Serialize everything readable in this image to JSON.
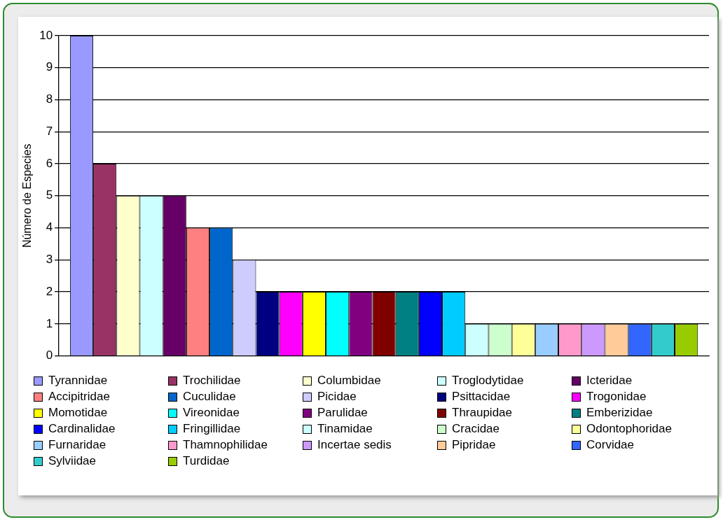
{
  "chart_data": {
    "type": "bar",
    "ylabel": "Número de Especies",
    "categories": [
      null
    ],
    "ylim": [
      0,
      10
    ],
    "yticks": [
      0,
      1,
      2,
      3,
      4,
      5,
      6,
      7,
      8,
      9,
      10
    ],
    "grid": "y",
    "legend": "bottom",
    "series": [
      {
        "name": "Tyrannidae",
        "color": "#9999ff",
        "values": [
          10
        ]
      },
      {
        "name": "Trochilidae",
        "color": "#993366",
        "values": [
          6
        ]
      },
      {
        "name": "Columbidae",
        "color": "#ffffcc",
        "values": [
          5
        ]
      },
      {
        "name": "Troglodytidae",
        "color": "#ccffff",
        "values": [
          5
        ]
      },
      {
        "name": "Icteridae",
        "color": "#660066",
        "values": [
          5
        ]
      },
      {
        "name": "Accipitridae",
        "color": "#ff8080",
        "values": [
          4
        ]
      },
      {
        "name": "Cuculidae",
        "color": "#0066cc",
        "values": [
          4
        ]
      },
      {
        "name": "Picidae",
        "color": "#ccccff",
        "values": [
          3
        ]
      },
      {
        "name": "Psittacidae",
        "color": "#000080",
        "values": [
          2
        ]
      },
      {
        "name": "Trogonidae",
        "color": "#ff00ff",
        "values": [
          2
        ]
      },
      {
        "name": "Momotidae",
        "color": "#ffff00",
        "values": [
          2
        ]
      },
      {
        "name": "Vireonidae",
        "color": "#00ffff",
        "values": [
          2
        ]
      },
      {
        "name": "Parulidae",
        "color": "#800080",
        "values": [
          2
        ]
      },
      {
        "name": "Thraupidae",
        "color": "#800000",
        "values": [
          2
        ]
      },
      {
        "name": "Emberizidae",
        "color": "#008080",
        "values": [
          2
        ]
      },
      {
        "name": "Cardinalidae",
        "color": "#0000ff",
        "values": [
          2
        ]
      },
      {
        "name": "Fringillidae",
        "color": "#00ccff",
        "values": [
          2
        ]
      },
      {
        "name": "Tinamidae",
        "color": "#ccffff",
        "values": [
          1
        ]
      },
      {
        "name": "Cracidae",
        "color": "#ccffcc",
        "values": [
          1
        ]
      },
      {
        "name": "Odontophoridae",
        "color": "#ffff99",
        "values": [
          1
        ]
      },
      {
        "name": "Furnaridae",
        "color": "#99ccff",
        "values": [
          1
        ]
      },
      {
        "name": "Thamnophilidae",
        "color": "#ff99cc",
        "values": [
          1
        ]
      },
      {
        "name": "Incertae sedis",
        "color": "#cc99ff",
        "values": [
          1
        ]
      },
      {
        "name": "Pipridae",
        "color": "#ffcc99",
        "values": [
          1
        ]
      },
      {
        "name": "Corvidae",
        "color": "#3366ff",
        "values": [
          1
        ]
      },
      {
        "name": "Sylviidae",
        "color": "#33cccc",
        "values": [
          1
        ]
      },
      {
        "name": "Turdidae",
        "color": "#99cc00",
        "values": [
          1
        ]
      }
    ]
  }
}
